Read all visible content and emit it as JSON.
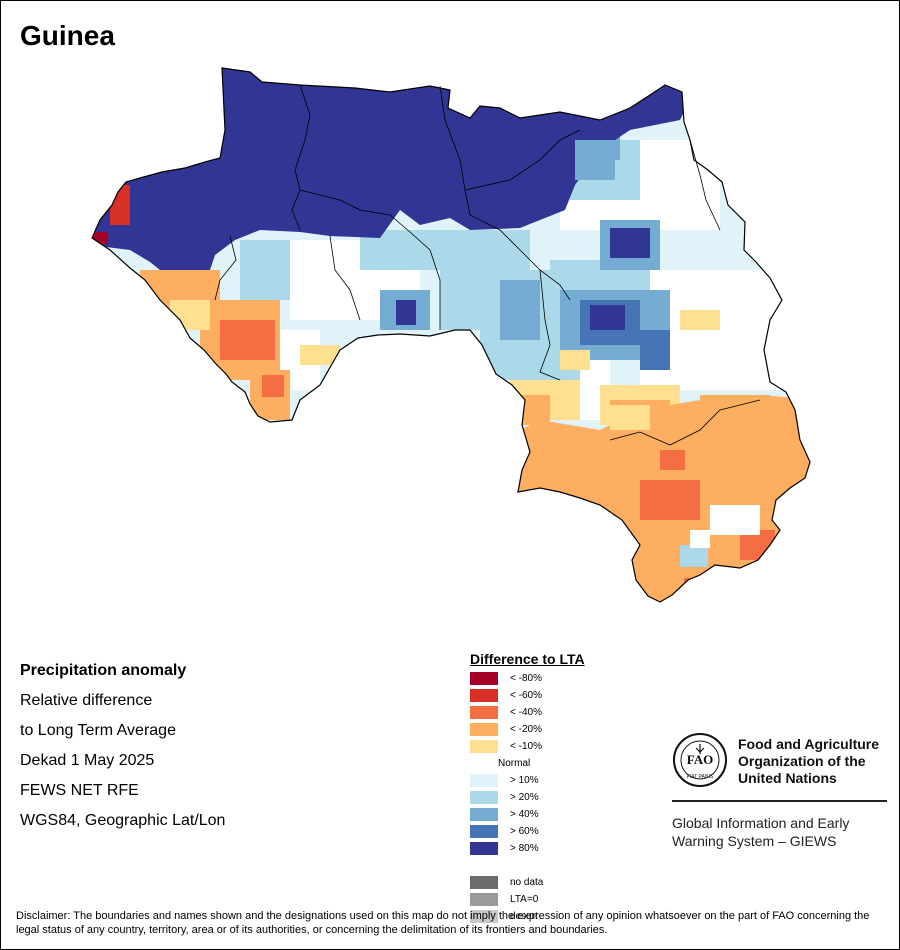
{
  "title": "Guinea",
  "info": {
    "heading": "Precipitation anomaly",
    "lines": [
      "Relative difference",
      "to Long Term Average",
      "Dekad 1 May 2025",
      "FEWS NET RFE",
      "WGS84, Geographic Lat/Lon"
    ]
  },
  "legend": {
    "title": "Difference to LTA",
    "items": [
      {
        "label": "< -80%",
        "color": "#a50026"
      },
      {
        "label": "< -60%",
        "color": "#d73027"
      },
      {
        "label": "< -40%",
        "color": "#f46d43"
      },
      {
        "label": "< -20%",
        "color": "#fdae61"
      },
      {
        "label": "< -10%",
        "color": "#fee090"
      },
      {
        "label": "Normal",
        "color": "#ffffff"
      },
      {
        "label": "> 10%",
        "color": "#e0f3f8"
      },
      {
        "label": "> 20%",
        "color": "#abd9e9"
      },
      {
        "label": "> 40%",
        "color": "#74add1"
      },
      {
        "label": "> 60%",
        "color": "#4575b4"
      },
      {
        "label": "> 80%",
        "color": "#313695"
      }
    ],
    "extra": [
      {
        "label": "no data",
        "color": "#6b6b6b"
      },
      {
        "label": "LTA=0",
        "color": "#9a9a9a"
      },
      {
        "label": "desert",
        "color": "#c8c8c8"
      }
    ]
  },
  "fao": {
    "logo_text": "FIAT PANIS",
    "name_lines": [
      "Food and Agriculture",
      "Organization of the",
      "United Nations"
    ],
    "giews_lines": [
      "Global Information and Early",
      "Warning System – GIEWS"
    ]
  },
  "disclaimer": "Disclaimer: The boundaries and names shown and the designations used on this map do not imply the expression of any opinion whatsoever on the part of FAO concerning the legal status of any country, territory, area or of its authorities, or concerning the delimitation of its frontiers and boundaries."
}
